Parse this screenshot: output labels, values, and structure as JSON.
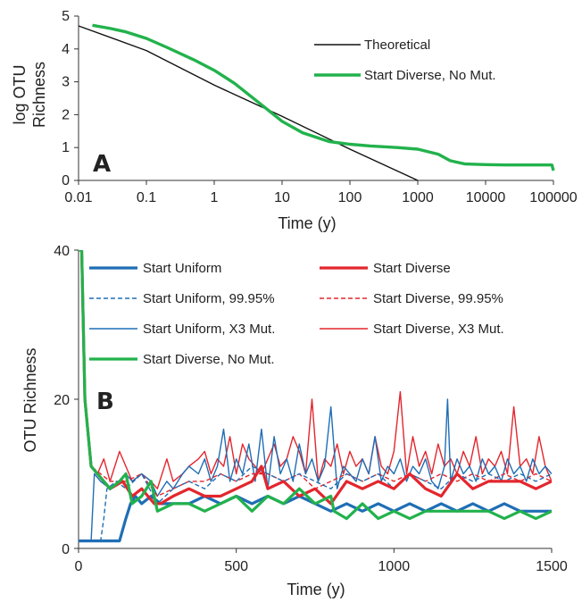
{
  "chart_data": [
    {
      "panel": "A",
      "type": "line",
      "xlabel": "Time (y)",
      "ylabel_lines": [
        "log OTU",
        "Richness"
      ],
      "x_scale": "log",
      "xlim": [
        0.01,
        100000
      ],
      "ylim": [
        0,
        5
      ],
      "x_ticks": [
        "0.01",
        "0.1",
        "1",
        "10",
        "100",
        "1000",
        "10000",
        "100000"
      ],
      "y_ticks": [
        "0",
        "1",
        "2",
        "3",
        "4",
        "5"
      ],
      "legend_position": "top-right",
      "colors": {
        "Theoretical": "#111111",
        "Start Diverse, No Mut.": "#22b24c"
      },
      "series": [
        {
          "name": "Theoretical",
          "x": [
            0.01,
            0.1,
            1,
            10,
            100,
            1000
          ],
          "y": [
            4.7,
            3.95,
            2.9,
            1.95,
            0.95,
            0.0
          ]
        },
        {
          "name": "Start Diverse, No Mut.",
          "x": [
            0.016,
            0.03,
            0.05,
            0.1,
            0.2,
            0.5,
            1,
            2,
            5,
            10,
            20,
            50,
            100,
            200,
            500,
            1000,
            2000,
            3000,
            5000,
            10000,
            20000,
            50000,
            95000,
            100000
          ],
          "y": [
            4.72,
            4.62,
            4.52,
            4.32,
            4.05,
            3.67,
            3.35,
            2.95,
            2.3,
            1.8,
            1.45,
            1.18,
            1.1,
            1.05,
            1.0,
            0.95,
            0.8,
            0.6,
            0.5,
            0.48,
            0.47,
            0.47,
            0.47,
            0.3
          ]
        }
      ]
    },
    {
      "panel": "B",
      "type": "line",
      "xlabel": "Time (y)",
      "ylabel": "OTU Richness",
      "xlim": [
        0,
        1500
      ],
      "ylim": [
        0,
        40
      ],
      "x_ticks": [
        "0",
        "500",
        "1000",
        "1500"
      ],
      "y_ticks": [
        "0",
        "20",
        "40"
      ],
      "legend_position": "top",
      "series": [
        {
          "name": "Start Uniform",
          "color": "#1f6eb5",
          "width": 3.2,
          "dash": "",
          "x": [
            0,
            120,
            130,
            150,
            165,
            180,
            200,
            230,
            260,
            300,
            350,
            400,
            450,
            500,
            550,
            600,
            650,
            700,
            750,
            800,
            850,
            900,
            950,
            1000,
            1050,
            1100,
            1150,
            1200,
            1250,
            1300,
            1350,
            1400,
            1450,
            1500
          ],
          "y": [
            1,
            1,
            1,
            4,
            6,
            7,
            6,
            7,
            6,
            6,
            6,
            7,
            6,
            7,
            6,
            7,
            6,
            7,
            6,
            5,
            6,
            5,
            6,
            5,
            6,
            5,
            6,
            5,
            6,
            5,
            6,
            5,
            5,
            5
          ]
        },
        {
          "name": "Start Diverse",
          "color": "#e3262d",
          "width": 3.2,
          "dash": "",
          "x": [
            0,
            10,
            20,
            40,
            60,
            100,
            140,
            170,
            200,
            240,
            260,
            300,
            350,
            400,
            450,
            500,
            550,
            580,
            600,
            650,
            700,
            750,
            800,
            850,
            900,
            950,
            1000,
            1050,
            1100,
            1150,
            1200,
            1250,
            1300,
            1350,
            1400,
            1450,
            1500
          ],
          "y": [
            40,
            40,
            20,
            11,
            10,
            8,
            9,
            7,
            8,
            6,
            6,
            7,
            8,
            7,
            7,
            8,
            9,
            11,
            8,
            9,
            7,
            8,
            6,
            9,
            8,
            9,
            8,
            10,
            8,
            7,
            10,
            8,
            9,
            9,
            9,
            8,
            9
          ]
        },
        {
          "name": "Start Uniform, 99.95%",
          "color": "#1f6eb5",
          "width": 1.4,
          "dash": "5,3",
          "x": [
            0,
            70,
            80,
            90,
            120,
            150,
            200,
            250,
            300,
            350,
            400,
            450,
            500,
            550,
            600,
            650,
            700,
            750,
            800,
            850,
            900,
            950,
            1000,
            1050,
            1100,
            1150,
            1200,
            1250,
            1300,
            1350,
            1400,
            1450,
            1500
          ],
          "y": [
            1,
            1,
            4,
            8,
            9,
            8,
            10,
            6,
            8,
            9,
            8,
            10,
            9,
            11,
            10,
            9,
            10,
            9,
            8,
            10,
            9,
            10,
            8,
            10,
            9,
            8,
            10,
            9,
            10,
            9,
            10,
            9,
            10
          ]
        },
        {
          "name": "Start Diverse, 99.95%",
          "color": "#e3262d",
          "width": 1.4,
          "dash": "5,3",
          "x": [
            0,
            10,
            20,
            40,
            70,
            100,
            150,
            200,
            250,
            300,
            350,
            400,
            450,
            500,
            550,
            600,
            650,
            700,
            750,
            800,
            850,
            900,
            950,
            1000,
            1050,
            1100,
            1150,
            1200,
            1250,
            1300,
            1350,
            1400,
            1450,
            1500
          ],
          "y": [
            40,
            40,
            20,
            11,
            10,
            9,
            9,
            10,
            7,
            8,
            9,
            9,
            10,
            9,
            10,
            10,
            9,
            10,
            8,
            9,
            10,
            9,
            10,
            9,
            10,
            9,
            10,
            9,
            10,
            9,
            10,
            9,
            10,
            9
          ]
        },
        {
          "name": "Start Uniform, X3 Mut.",
          "color": "#1f6eb5",
          "width": 1.4,
          "dash": "",
          "x": [
            0,
            40,
            50,
            70,
            100,
            130,
            150,
            170,
            200,
            230,
            250,
            280,
            300,
            330,
            350,
            380,
            400,
            420,
            440,
            460,
            480,
            500,
            520,
            540,
            560,
            580,
            600,
            620,
            640,
            660,
            680,
            700,
            720,
            740,
            760,
            780,
            800,
            820,
            840,
            860,
            880,
            900,
            920,
            940,
            960,
            980,
            1000,
            1020,
            1040,
            1060,
            1080,
            1100,
            1120,
            1140,
            1160,
            1170,
            1180,
            1200,
            1220,
            1240,
            1260,
            1280,
            1300,
            1320,
            1340,
            1360,
            1380,
            1400,
            1420,
            1440,
            1460,
            1480,
            1500
          ],
          "y": [
            1,
            1,
            10,
            9,
            8,
            9,
            10,
            9,
            10,
            9,
            7,
            9,
            8,
            10,
            11,
            10,
            12,
            9,
            11,
            16,
            9,
            12,
            10,
            14,
            9,
            16,
            8,
            15,
            10,
            12,
            9,
            14,
            10,
            12,
            9,
            11,
            19,
            8,
            11,
            10,
            9,
            12,
            10,
            15,
            9,
            11,
            10,
            12,
            9,
            11,
            10,
            12,
            9,
            8,
            11,
            20,
            9,
            12,
            10,
            11,
            9,
            12,
            10,
            11,
            9,
            12,
            10,
            11,
            9,
            12,
            10,
            11,
            10
          ]
        },
        {
          "name": "Start Diverse, X3 Mut.",
          "color": "#e3262d",
          "width": 1.4,
          "dash": "",
          "x": [
            0,
            10,
            20,
            40,
            60,
            80,
            100,
            130,
            150,
            170,
            200,
            230,
            250,
            280,
            300,
            330,
            350,
            380,
            400,
            420,
            440,
            460,
            480,
            500,
            520,
            540,
            560,
            580,
            600,
            620,
            640,
            660,
            680,
            700,
            720,
            740,
            760,
            780,
            800,
            820,
            840,
            860,
            880,
            900,
            920,
            940,
            960,
            980,
            1000,
            1020,
            1040,
            1060,
            1080,
            1100,
            1120,
            1140,
            1160,
            1180,
            1200,
            1220,
            1240,
            1260,
            1280,
            1300,
            1320,
            1340,
            1360,
            1380,
            1400,
            1420,
            1440,
            1460,
            1480,
            1500
          ],
          "y": [
            40,
            40,
            20,
            11,
            10,
            12,
            9,
            13,
            11,
            9,
            10,
            9,
            8,
            12,
            9,
            10,
            11,
            12,
            13,
            10,
            12,
            11,
            15,
            10,
            14,
            12,
            11,
            10,
            12,
            14,
            11,
            12,
            15,
            13,
            10,
            20,
            9,
            12,
            11,
            14,
            10,
            13,
            11,
            12,
            10,
            15,
            11,
            10,
            13,
            21,
            10,
            15,
            11,
            13,
            10,
            14,
            11,
            12,
            10,
            13,
            11,
            15,
            10,
            12,
            11,
            13,
            10,
            19,
            11,
            12,
            10,
            15,
            11,
            9
          ]
        },
        {
          "name": "Start Diverse, No Mut.",
          "color": "#22b24c",
          "width": 3.2,
          "dash": "",
          "x": [
            0,
            10,
            20,
            40,
            60,
            100,
            130,
            150,
            170,
            200,
            230,
            250,
            300,
            350,
            400,
            450,
            500,
            550,
            600,
            650,
            700,
            750,
            800,
            810,
            850,
            900,
            950,
            1000,
            1050,
            1100,
            1150,
            1200,
            1250,
            1300,
            1350,
            1400,
            1450,
            1500
          ],
          "y": [
            40,
            40,
            20,
            11,
            10,
            8,
            9,
            10,
            6,
            7,
            9,
            5,
            6,
            6,
            5,
            6,
            7,
            5,
            7,
            6,
            8,
            6,
            7,
            5,
            4,
            6,
            4,
            5,
            4,
            5,
            5,
            5,
            5,
            5,
            4,
            5,
            4,
            5
          ]
        }
      ]
    }
  ]
}
